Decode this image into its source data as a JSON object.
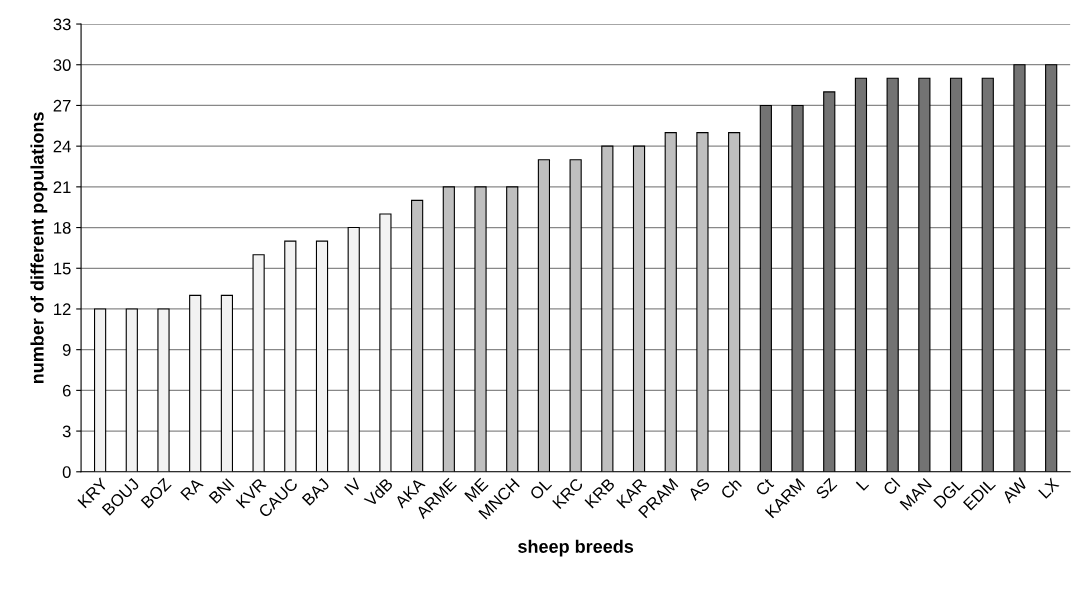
{
  "chart_data": {
    "type": "bar",
    "xlabel": "sheep breeds",
    "ylabel": "number of different populations",
    "categories": [
      "KRY",
      "BOUJ",
      "BOZ",
      "RA",
      "BNI",
      "KVR",
      "CAUC",
      "BAJ",
      "IV",
      "VdB",
      "AKA",
      "ARME",
      "ME",
      "MNCH",
      "OL",
      "KRC",
      "KRB",
      "KAR",
      "PRAM",
      "AS",
      "Ch",
      "Ct",
      "KARM",
      "SZ",
      "L",
      "Cl",
      "MAN",
      "DGL",
      "EDIL",
      "AW",
      "LX"
    ],
    "values": [
      12,
      12,
      12,
      13,
      13,
      16,
      17,
      17,
      18,
      19,
      20,
      21,
      21,
      21,
      23,
      23,
      24,
      24,
      25,
      25,
      25,
      27,
      27,
      28,
      29,
      29,
      29,
      29,
      29,
      30,
      30
    ],
    "colors": [
      "#f2f2f2",
      "#f2f2f2",
      "#f2f2f2",
      "#f2f2f2",
      "#f2f2f2",
      "#f2f2f2",
      "#f2f2f2",
      "#f2f2f2",
      "#f2f2f2",
      "#f2f2f2",
      "#bfbfbf",
      "#bfbfbf",
      "#bfbfbf",
      "#bfbfbf",
      "#bfbfbf",
      "#bfbfbf",
      "#bfbfbf",
      "#bfbfbf",
      "#bfbfbf",
      "#bfbfbf",
      "#bfbfbf",
      "#737373",
      "#737373",
      "#737373",
      "#737373",
      "#737373",
      "#737373",
      "#737373",
      "#737373",
      "#737373",
      "#737373"
    ],
    "ylim": [
      0,
      33
    ],
    "yticks": [
      0,
      3,
      6,
      9,
      12,
      15,
      18,
      21,
      24,
      27,
      30,
      33
    ],
    "grid": "y"
  }
}
